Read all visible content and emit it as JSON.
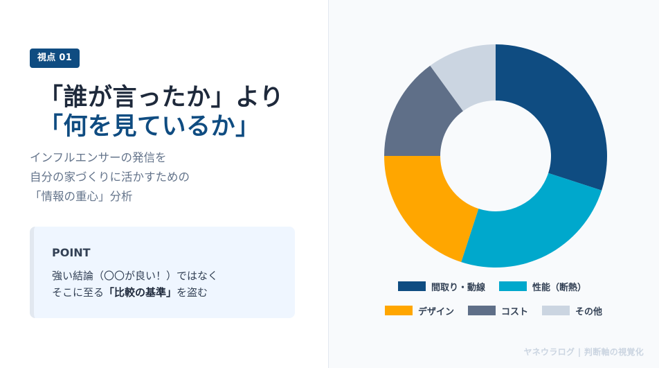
{
  "left": {
    "badge": "視点 01",
    "title_line1": "「誰が言ったか」より",
    "title_line2": "「何を見ているか」",
    "subtitle_lines": [
      "インフルエンサーの発信を",
      "自分の家づくりに活かすための",
      "「情報の重心」分析"
    ],
    "point_card": {
      "title": "POINT",
      "line1": "強い結論（〇〇が良い！）ではなく",
      "line2_prefix": "そこに至る",
      "line2_bold": "「比較の基準」",
      "line2_suffix": "を盗む"
    }
  },
  "colors": {
    "accent": "#0f4c81",
    "title_dark": "#1e293b",
    "subtitle": "#64748b",
    "card_bg": "#eff6ff",
    "panel_bg": "#f8fafc"
  },
  "chart_data": {
    "type": "pie",
    "variant": "donut",
    "title": "",
    "categories": [
      "間取り・動線",
      "性能（断熱）",
      "デザイン",
      "コスト",
      "その他"
    ],
    "values": [
      30,
      25,
      20,
      15,
      10
    ],
    "colors": [
      "#0f4c81",
      "#00a8cc",
      "#ffa600",
      "#5f6f88",
      "#cbd5e1"
    ],
    "start_angle": "12 o'clock, clockwise",
    "legend_position": "bottom",
    "data_labels": false
  },
  "legend": {
    "row1": [
      {
        "label": "間取り・動線",
        "color": "#0f4c81"
      },
      {
        "label": "性能（断熱）",
        "color": "#00a8cc"
      }
    ],
    "row2": [
      {
        "label": "デザイン",
        "color": "#ffa600"
      },
      {
        "label": "コスト",
        "color": "#5f6f88"
      },
      {
        "label": "その他",
        "color": "#cbd5e1"
      }
    ]
  },
  "footer": "ヤネウラログ | 判断軸の視覚化"
}
